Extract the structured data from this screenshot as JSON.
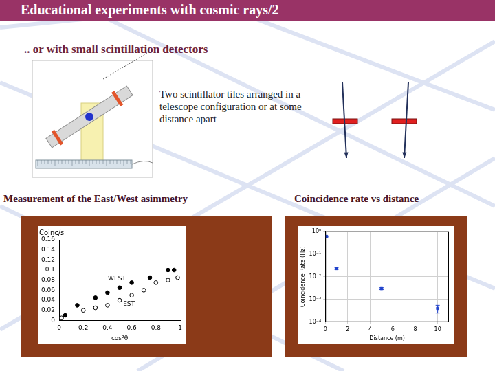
{
  "header": {
    "title": "Educational experiments with cosmic rays/2",
    "subtitle": ".. or with small scintillation detectors"
  },
  "diagram": {
    "caption": "Two scintillator tiles arranged in a telescope configuration or at some distance apart",
    "left_label": "Measurement of the East/West asimmetry",
    "right_label": "Coincidence rate vs distance"
  },
  "chart_data": [
    {
      "type": "scatter",
      "y_label": "Coinc/s",
      "x_label": "cos²θ",
      "xlim": [
        0,
        1
      ],
      "xticks": [
        0,
        0.2,
        0.4,
        0.6,
        0.8,
        1
      ],
      "ylim": [
        0,
        0.16
      ],
      "yticks": [
        0,
        0.02,
        0.04,
        0.06,
        0.08,
        0.1,
        0.12,
        0.14,
        0.16
      ],
      "grid": false,
      "series": [
        {
          "name": "WEST",
          "color": "#000000",
          "marker": "circle",
          "x": [
            0.05,
            0.15,
            0.3,
            0.4,
            0.5,
            0.6,
            0.75,
            0.9,
            0.95
          ],
          "values": [
            0.01,
            0.03,
            0.045,
            0.055,
            0.065,
            0.075,
            0.085,
            0.1,
            0.1
          ]
        },
        {
          "name": "EST",
          "color": "#000000",
          "marker": "circle_open",
          "x": [
            0.02,
            0.2,
            0.3,
            0.4,
            0.5,
            0.6,
            0.7,
            0.8,
            0.9,
            0.98
          ],
          "values": [
            0.005,
            0.02,
            0.025,
            0.03,
            0.04,
            0.05,
            0.06,
            0.075,
            0.08,
            0.085
          ]
        }
      ]
    },
    {
      "type": "scatter",
      "x_label": "Distance (m)",
      "y_label": "Coincidence Rate (Hz)",
      "log": "y",
      "grid": true,
      "color": "#2244cc",
      "marker": "square",
      "xlim": [
        0,
        11
      ],
      "xticks": [
        0,
        2,
        4,
        6,
        8,
        10
      ],
      "ylim": [
        0.0001,
        1
      ],
      "yticks": [
        {
          "value": 0.0001,
          "label": "10⁻⁴"
        },
        {
          "value": 0.001,
          "label": "10⁻³"
        },
        {
          "value": 0.01,
          "label": "10⁻²"
        },
        {
          "value": 0.1,
          "label": "10⁻¹"
        },
        {
          "value": 1,
          "label": "10⁰"
        }
      ],
      "x": [
        0.1,
        1,
        5,
        10
      ],
      "values": [
        0.6,
        0.023,
        0.003,
        0.0004
      ],
      "errors": [
        0.03,
        0.002,
        0.0003,
        0.00015
      ]
    }
  ]
}
